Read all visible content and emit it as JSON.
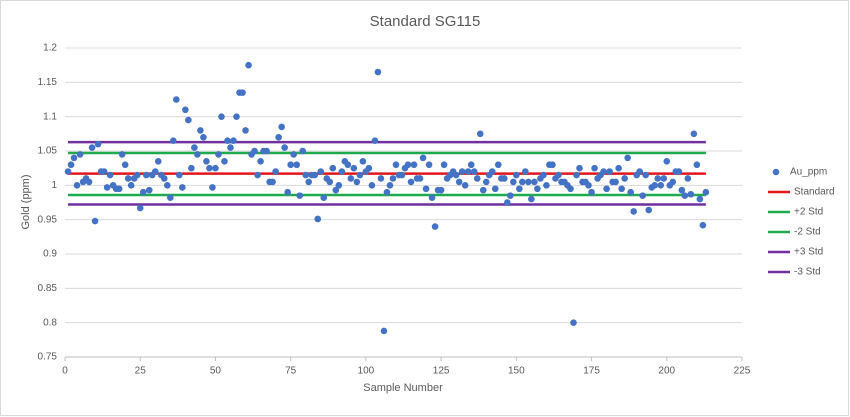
{
  "chart_data": {
    "type": "scatter",
    "title": "Standard SG115",
    "x_label": "Sample Number",
    "y_label": "Gold (ppm)",
    "xlim": [
      0,
      225
    ],
    "xticks": [
      0,
      25,
      50,
      75,
      100,
      125,
      150,
      175,
      200,
      225
    ],
    "ylim": [
      0.75,
      1.2
    ],
    "yticks": [
      0.75,
      0.8,
      0.85,
      0.9,
      0.95,
      1,
      1.05,
      1.1,
      1.15,
      1.2
    ],
    "grid": true,
    "legend": "right",
    "series": [
      {
        "name": "Au_ppm",
        "style": "marker",
        "color": "#4472c4",
        "x": [
          1,
          2,
          3,
          4,
          5,
          6,
          7,
          8,
          9,
          10,
          11,
          12,
          13,
          14,
          15,
          16,
          17,
          18,
          19,
          20,
          21,
          22,
          23,
          24,
          25,
          26,
          27,
          28,
          29,
          30,
          31,
          32,
          33,
          34,
          35,
          36,
          37,
          38,
          39,
          40,
          41,
          42,
          43,
          44,
          45,
          46,
          47,
          48,
          49,
          50,
          51,
          52,
          53,
          54,
          55,
          56,
          57,
          58,
          59,
          60,
          61,
          62,
          63,
          64,
          65,
          66,
          67,
          68,
          69,
          70,
          71,
          72,
          73,
          74,
          75,
          76,
          77,
          78,
          79,
          80,
          81,
          82,
          83,
          84,
          85,
          86,
          87,
          88,
          89,
          90,
          91,
          92,
          93,
          94,
          95,
          96,
          97,
          98,
          99,
          100,
          101,
          102,
          103,
          104,
          105,
          106,
          107,
          108,
          109,
          110,
          111,
          112,
          113,
          114,
          115,
          116,
          117,
          118,
          119,
          120,
          121,
          122,
          123,
          124,
          125,
          126,
          127,
          128,
          129,
          130,
          131,
          132,
          133,
          134,
          135,
          136,
          137,
          138,
          139,
          140,
          141,
          142,
          143,
          144,
          145,
          146,
          147,
          148,
          149,
          150,
          151,
          152,
          153,
          154,
          155,
          156,
          157,
          158,
          159,
          160,
          161,
          162,
          163,
          164,
          165,
          166,
          167,
          168,
          169,
          170,
          171,
          172,
          173,
          174,
          175,
          176,
          177,
          178,
          179,
          180,
          181,
          182,
          183,
          184,
          185,
          186,
          187,
          188,
          189,
          190,
          191,
          192,
          193,
          194,
          195,
          196,
          197,
          198,
          199,
          200,
          201,
          202,
          203,
          204,
          205,
          206,
          207,
          208,
          209,
          210,
          211,
          212,
          213
        ],
        "values": [
          1.02,
          1.03,
          1.04,
          1.0,
          1.045,
          1.005,
          1.01,
          1.005,
          1.055,
          0.948,
          1.06,
          1.02,
          1.02,
          0.997,
          1.015,
          1.0,
          0.995,
          0.995,
          1.045,
          1.03,
          1.01,
          1.0,
          1.01,
          1.015,
          0.967,
          0.99,
          1.015,
          0.993,
          1.015,
          1.02,
          1.035,
          1.015,
          1.01,
          1.0,
          0.982,
          1.065,
          1.125,
          1.015,
          0.997,
          1.11,
          1.095,
          1.025,
          1.055,
          1.045,
          1.08,
          1.07,
          1.035,
          1.025,
          0.997,
          1.025,
          1.045,
          1.1,
          1.035,
          1.065,
          1.055,
          1.065,
          1.1,
          1.135,
          1.135,
          1.08,
          1.175,
          1.045,
          1.05,
          1.015,
          1.035,
          1.05,
          1.05,
          1.005,
          1.005,
          1.02,
          1.07,
          1.085,
          1.055,
          0.99,
          1.03,
          1.045,
          1.03,
          0.985,
          1.05,
          1.015,
          1.005,
          1.015,
          1.015,
          0.951,
          1.02,
          0.982,
          1.01,
          1.005,
          1.025,
          0.993,
          1.0,
          1.02,
          1.035,
          1.03,
          1.01,
          1.025,
          1.005,
          1.015,
          1.035,
          1.02,
          1.025,
          1.0,
          1.065,
          1.165,
          1.01,
          0.788,
          0.99,
          1.0,
          1.01,
          1.03,
          1.015,
          1.015,
          1.025,
          1.03,
          1.005,
          1.03,
          1.01,
          1.01,
          1.04,
          0.995,
          1.03,
          0.982,
          0.94,
          0.993,
          0.993,
          1.03,
          1.01,
          1.015,
          1.02,
          1.015,
          1.005,
          1.02,
          1.0,
          1.02,
          1.03,
          1.02,
          1.01,
          1.075,
          0.993,
          1.005,
          1.015,
          1.02,
          0.995,
          1.03,
          1.01,
          1.01,
          0.975,
          0.985,
          1.005,
          1.015,
          0.995,
          1.005,
          1.02,
          1.005,
          0.98,
          1.005,
          0.995,
          1.01,
          1.015,
          1.0,
          1.03,
          1.03,
          1.01,
          1.015,
          1.005,
          1.005,
          1.0,
          0.995,
          0.8,
          1.015,
          1.025,
          1.005,
          1.005,
          1.0,
          0.99,
          1.025,
          1.01,
          1.015,
          1.02,
          0.995,
          1.02,
          1.005,
          1.005,
          1.025,
          0.995,
          1.01,
          1.04,
          0.99,
          0.962,
          1.015,
          1.02,
          0.985,
          1.015,
          0.964,
          0.997,
          1.0,
          1.01,
          1.0,
          1.01,
          1.035,
          1.0,
          1.005,
          1.02,
          1.02,
          0.993,
          0.985,
          1.01,
          0.987,
          1.075,
          1.03,
          0.98,
          0.942,
          0.99
        ]
      },
      {
        "name": "Standard",
        "style": "line",
        "color": "#e0181b",
        "x": [
          1,
          213
        ],
        "values": [
          1.017,
          1.017
        ]
      },
      {
        "name": "+2 Std",
        "style": "line",
        "color": "#1faa4f",
        "x": [
          1,
          213
        ],
        "values": [
          1.047,
          1.047
        ]
      },
      {
        "name": "-2 Std",
        "style": "line",
        "color": "#1faa4f",
        "x": [
          1,
          213
        ],
        "values": [
          0.986,
          0.986
        ]
      },
      {
        "name": "+3 Std",
        "style": "line",
        "color": "#7030a0",
        "x": [
          1,
          213
        ],
        "values": [
          1.063,
          1.063
        ]
      },
      {
        "name": "-3 Std",
        "style": "line",
        "color": "#7030a0",
        "x": [
          1,
          213
        ],
        "values": [
          0.972,
          0.972
        ]
      }
    ]
  }
}
